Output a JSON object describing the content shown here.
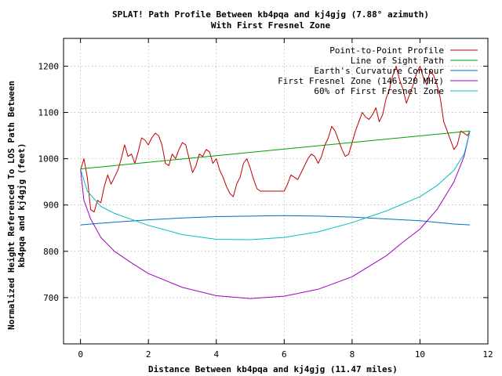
{
  "chart_data": {
    "type": "line",
    "title": "SPLAT! Path Profile Between kb4pqa and kj4gjg (7.88° azimuth)",
    "subtitle": "With First Fresnel Zone",
    "xlabel": "Distance Between kb4pqa and kj4gjg (11.47 miles)",
    "ylabel": "Normalized Height Referenced To LOS Path Between",
    "ylabel2": "kb4pqa and kj4gjg (feet)",
    "xlim": [
      -0.5,
      12
    ],
    "ylim": [
      600,
      1260
    ],
    "xticks": [
      0,
      2,
      4,
      6,
      8,
      10,
      12
    ],
    "yticks": [
      700,
      800,
      900,
      1000,
      1100,
      1200
    ],
    "grid": true,
    "legend_position": "top-right",
    "series": [
      {
        "name": "Point-to-Point Profile",
        "color": "#c00000",
        "points": [
          [
            0,
            975
          ],
          [
            0.1,
            1000
          ],
          [
            0.2,
            960
          ],
          [
            0.3,
            890
          ],
          [
            0.4,
            885
          ],
          [
            0.5,
            910
          ],
          [
            0.6,
            905
          ],
          [
            0.7,
            940
          ],
          [
            0.8,
            965
          ],
          [
            0.9,
            945
          ],
          [
            1.0,
            960
          ],
          [
            1.1,
            975
          ],
          [
            1.2,
            1000
          ],
          [
            1.3,
            1030
          ],
          [
            1.4,
            1005
          ],
          [
            1.5,
            1010
          ],
          [
            1.6,
            990
          ],
          [
            1.7,
            1015
          ],
          [
            1.8,
            1045
          ],
          [
            1.9,
            1040
          ],
          [
            2.0,
            1030
          ],
          [
            2.1,
            1045
          ],
          [
            2.2,
            1055
          ],
          [
            2.3,
            1050
          ],
          [
            2.4,
            1030
          ],
          [
            2.5,
            990
          ],
          [
            2.6,
            985
          ],
          [
            2.7,
            1010
          ],
          [
            2.8,
            1000
          ],
          [
            2.9,
            1020
          ],
          [
            3.0,
            1035
          ],
          [
            3.1,
            1030
          ],
          [
            3.2,
            1000
          ],
          [
            3.3,
            970
          ],
          [
            3.4,
            985
          ],
          [
            3.5,
            1010
          ],
          [
            3.6,
            1005
          ],
          [
            3.7,
            1020
          ],
          [
            3.8,
            1015
          ],
          [
            3.9,
            990
          ],
          [
            4.0,
            1000
          ],
          [
            4.1,
            975
          ],
          [
            4.2,
            960
          ],
          [
            4.3,
            940
          ],
          [
            4.4,
            925
          ],
          [
            4.5,
            918
          ],
          [
            4.6,
            945
          ],
          [
            4.7,
            960
          ],
          [
            4.8,
            990
          ],
          [
            4.9,
            1000
          ],
          [
            5.0,
            980
          ],
          [
            5.1,
            955
          ],
          [
            5.2,
            935
          ],
          [
            5.3,
            930
          ],
          [
            5.4,
            930
          ],
          [
            5.5,
            930
          ],
          [
            5.6,
            930
          ],
          [
            5.8,
            930
          ],
          [
            6.0,
            930
          ],
          [
            6.1,
            945
          ],
          [
            6.2,
            965
          ],
          [
            6.3,
            960
          ],
          [
            6.4,
            955
          ],
          [
            6.5,
            970
          ],
          [
            6.6,
            985
          ],
          [
            6.7,
            1000
          ],
          [
            6.8,
            1010
          ],
          [
            6.9,
            1005
          ],
          [
            7.0,
            990
          ],
          [
            7.1,
            1005
          ],
          [
            7.2,
            1030
          ],
          [
            7.3,
            1045
          ],
          [
            7.4,
            1070
          ],
          [
            7.5,
            1060
          ],
          [
            7.6,
            1040
          ],
          [
            7.7,
            1020
          ],
          [
            7.8,
            1005
          ],
          [
            7.9,
            1010
          ],
          [
            8.0,
            1035
          ],
          [
            8.1,
            1060
          ],
          [
            8.2,
            1080
          ],
          [
            8.3,
            1100
          ],
          [
            8.4,
            1090
          ],
          [
            8.5,
            1085
          ],
          [
            8.6,
            1095
          ],
          [
            8.7,
            1110
          ],
          [
            8.8,
            1080
          ],
          [
            8.9,
            1095
          ],
          [
            9.0,
            1130
          ],
          [
            9.1,
            1150
          ],
          [
            9.2,
            1180
          ],
          [
            9.3,
            1200
          ],
          [
            9.4,
            1170
          ],
          [
            9.5,
            1150
          ],
          [
            9.6,
            1120
          ],
          [
            9.7,
            1140
          ],
          [
            9.8,
            1160
          ],
          [
            9.9,
            1185
          ],
          [
            10.0,
            1200
          ],
          [
            10.1,
            1175
          ],
          [
            10.2,
            1160
          ],
          [
            10.3,
            1190
          ],
          [
            10.4,
            1180
          ],
          [
            10.5,
            1160
          ],
          [
            10.6,
            1130
          ],
          [
            10.7,
            1080
          ],
          [
            10.8,
            1060
          ],
          [
            10.9,
            1040
          ],
          [
            11.0,
            1020
          ],
          [
            11.1,
            1030
          ],
          [
            11.2,
            1060
          ],
          [
            11.3,
            1055
          ],
          [
            11.4,
            1050
          ],
          [
            11.47,
            1060
          ]
        ]
      },
      {
        "name": "Line of Sight Path",
        "color": "#00a000",
        "points": [
          [
            0,
            978
          ],
          [
            11.47,
            1060
          ]
        ]
      },
      {
        "name": "Earth's Curvature Contour",
        "color": "#0070c0",
        "points": [
          [
            0,
            857
          ],
          [
            1,
            863
          ],
          [
            2,
            868
          ],
          [
            3,
            872
          ],
          [
            4,
            875
          ],
          [
            5,
            876
          ],
          [
            6,
            877
          ],
          [
            7,
            876
          ],
          [
            8,
            874
          ],
          [
            9,
            870
          ],
          [
            10,
            866
          ],
          [
            11,
            859
          ],
          [
            11.47,
            857
          ]
        ]
      },
      {
        "name": "First Fresnel Zone (146.520 MHz)",
        "color": "#a000c0",
        "points": [
          [
            0,
            978
          ],
          [
            0.1,
            910
          ],
          [
            0.3,
            870
          ],
          [
            0.6,
            830
          ],
          [
            1,
            800
          ],
          [
            1.5,
            775
          ],
          [
            2,
            752
          ],
          [
            3,
            722
          ],
          [
            4,
            704
          ],
          [
            5,
            698
          ],
          [
            6,
            703
          ],
          [
            7,
            718
          ],
          [
            8,
            745
          ],
          [
            9,
            790
          ],
          [
            9.5,
            820
          ],
          [
            10,
            848
          ],
          [
            10.5,
            890
          ],
          [
            11,
            950
          ],
          [
            11.3,
            1005
          ],
          [
            11.47,
            1060
          ]
        ]
      },
      {
        "name": "60% of First Fresnel Zone",
        "color": "#00c0c0",
        "points": [
          [
            0,
            978
          ],
          [
            0.2,
            930
          ],
          [
            0.6,
            897
          ],
          [
            1,
            882
          ],
          [
            2,
            856
          ],
          [
            3,
            836
          ],
          [
            4,
            826
          ],
          [
            5,
            825
          ],
          [
            6,
            830
          ],
          [
            7,
            842
          ],
          [
            8,
            862
          ],
          [
            9,
            887
          ],
          [
            10,
            918
          ],
          [
            10.5,
            942
          ],
          [
            11,
            975
          ],
          [
            11.3,
            1010
          ],
          [
            11.47,
            1060
          ]
        ]
      }
    ]
  }
}
